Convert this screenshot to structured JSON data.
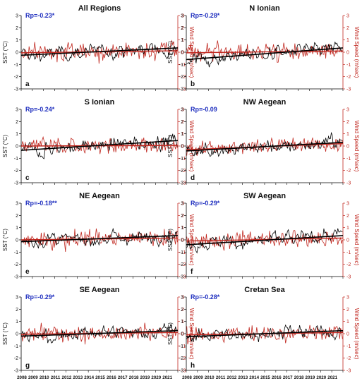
{
  "chart_data": {
    "type": "line",
    "y_left_label": "SST (°C)",
    "y_right_label": "Wind Speed (m/sec)",
    "ylim_left": [
      -3,
      3
    ],
    "ylim_right": [
      -3,
      3
    ],
    "y_ticks": [
      "3",
      "2",
      "1",
      "0",
      "-1",
      "-2",
      "-3"
    ],
    "x_range": [
      2008,
      2022
    ],
    "x_tick_labels": [
      "2008",
      "2009",
      "2010",
      "2011",
      "2012",
      "2013",
      "2014",
      "2015",
      "2016",
      "2017",
      "2018",
      "2019",
      "2020",
      "2021"
    ],
    "colors": {
      "sst": "#000000",
      "wind": "#c0271f",
      "trend": "#000000",
      "corr": "#1f2fbf"
    },
    "panels": [
      {
        "letter": "a",
        "title": "All Regions",
        "corr": "Rp=-0.23*",
        "sst_trend": [
          -0.25,
          0.35
        ],
        "wind_trend": [
          -0.05,
          0.12
        ]
      },
      {
        "letter": "b",
        "title": "N Ionian",
        "corr": "Rp=-0.28*",
        "sst_trend": [
          -0.6,
          0.35
        ],
        "wind_trend": [
          -0.05,
          0.1
        ]
      },
      {
        "letter": "c",
        "title": "S Ionian",
        "corr": "Rp=-0.24*",
        "sst_trend": [
          -0.35,
          0.45
        ],
        "wind_trend": [
          0.0,
          0.05
        ]
      },
      {
        "letter": "d",
        "title": "NW Aegean",
        "corr": "Rp=-0.09",
        "sst_trend": [
          -0.4,
          0.3
        ],
        "wind_trend": [
          -0.3,
          0.2
        ]
      },
      {
        "letter": "e",
        "title": "NE Aegean",
        "corr": "Rp=-0.18**",
        "sst_trend": [
          -0.15,
          0.35
        ],
        "wind_trend": [
          0.0,
          0.15
        ]
      },
      {
        "letter": "f",
        "title": "SW Aegean",
        "corr": "Rp=-0.29*",
        "sst_trend": [
          -0.4,
          0.35
        ],
        "wind_trend": [
          -0.1,
          0.15
        ]
      },
      {
        "letter": "g",
        "title": "SE Aegean",
        "corr": "Rp=-0.29*",
        "sst_trend": [
          -0.2,
          0.25
        ],
        "wind_trend": [
          -0.05,
          0.1
        ]
      },
      {
        "letter": "h",
        "title": "Cretan Sea",
        "corr": "Rp=-0.28*",
        "sst_trend": [
          -0.25,
          0.25
        ],
        "wind_trend": [
          -0.1,
          0.1
        ]
      }
    ]
  }
}
